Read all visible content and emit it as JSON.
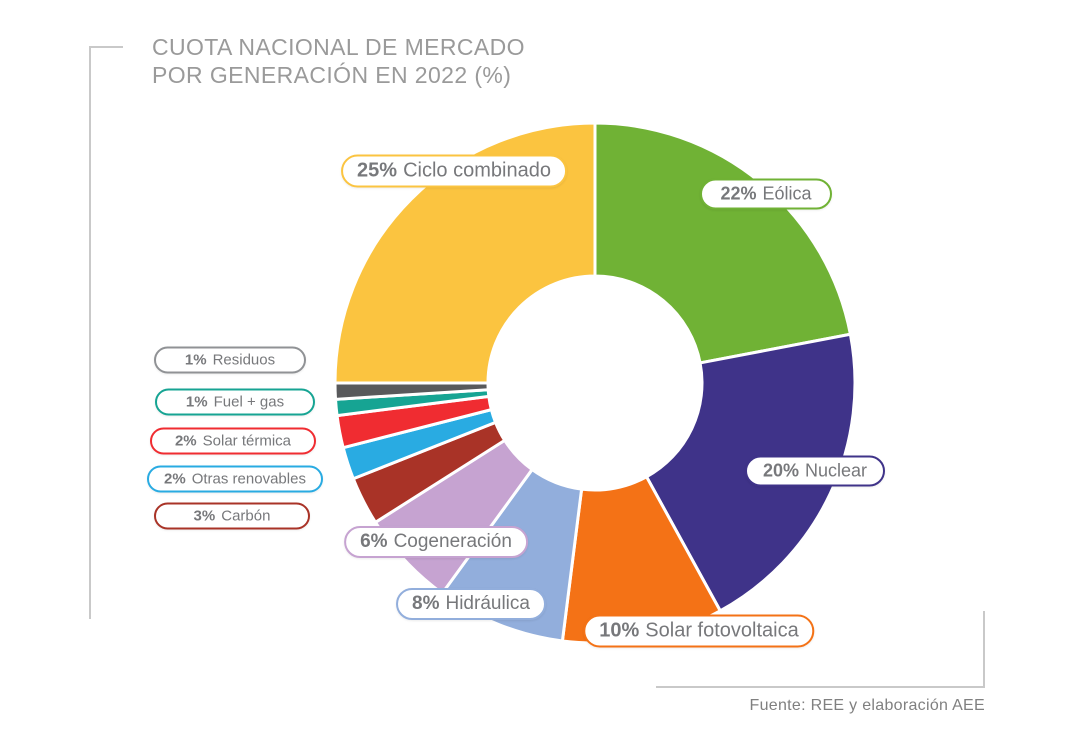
{
  "title": {
    "line1": "CUOTA NACIONAL DE MERCADO",
    "line2": "POR GENERACIÓN EN 2022 (%)"
  },
  "source": "Fuente: REE y elaboración AEE",
  "chart_data": {
    "type": "pie",
    "subtype": "donut",
    "title": "CUOTA NACIONAL DE MERCADO POR GENERACIÓN EN 2022 (%)",
    "unit": "%",
    "direction": "clockwise",
    "start_angle": "12-oclock",
    "inner_radius_ratio": 0.41,
    "legend_position": "callout-pills-around-chart",
    "series": [
      {
        "name": "Eólica",
        "value": 22,
        "pct": "22%",
        "color": "#70B235"
      },
      {
        "name": "Nuclear",
        "value": 20,
        "pct": "20%",
        "color": "#3F3389"
      },
      {
        "name": "Solar fotovoltaica",
        "value": 10,
        "pct": "10%",
        "color": "#F47216"
      },
      {
        "name": "Hidráulica",
        "value": 8,
        "pct": "8%",
        "color": "#92AEDC"
      },
      {
        "name": "Cogeneración",
        "value": 6,
        "pct": "6%",
        "color": "#C6A3D1"
      },
      {
        "name": "Carbón",
        "value": 3,
        "pct": "3%",
        "color": "#A93327"
      },
      {
        "name": "Otras renovables",
        "value": 2,
        "pct": "2%",
        "color": "#29ABE2"
      },
      {
        "name": "Solar térmica",
        "value": 2,
        "pct": "2%",
        "color": "#F02C31"
      },
      {
        "name": "Fuel + gas",
        "value": 1,
        "pct": "1%",
        "color": "#16A493"
      },
      {
        "name": "Residuos",
        "value": 1,
        "pct": "1%",
        "color": "#58595B",
        "pill_color": "#909295"
      },
      {
        "name": "Ciclo combinado",
        "value": 25,
        "pct": "25%",
        "color": "#FBC440"
      }
    ]
  }
}
